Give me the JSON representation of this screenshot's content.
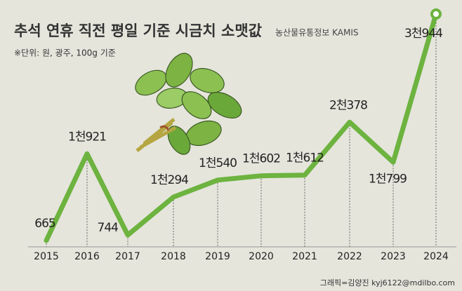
{
  "chart_data": {
    "type": "line",
    "title": "추석 연휴 직전 평일 기준 시금치 소맷값",
    "source": "농산물유통정보 KAMIS",
    "note": "※단위: 원, 광주, 100g 기준",
    "credit": "그래픽=김양진 kyj6122@mdilbo.com",
    "categories": [
      "2015",
      "2016",
      "2017",
      "2018",
      "2019",
      "2020",
      "2021",
      "2022",
      "2023",
      "2024"
    ],
    "series": [
      {
        "name": "시금치 소맷값",
        "color": "#6db33f",
        "values": [
          665,
          1921,
          744,
          1294,
          1540,
          1602,
          1612,
          2378,
          1799,
          3944
        ],
        "value_labels": [
          "665",
          "1천921",
          "744",
          "1천294",
          "1천540",
          "1천602",
          "1천612",
          "2천378",
          "1천799",
          "3천944"
        ]
      }
    ]
  }
}
